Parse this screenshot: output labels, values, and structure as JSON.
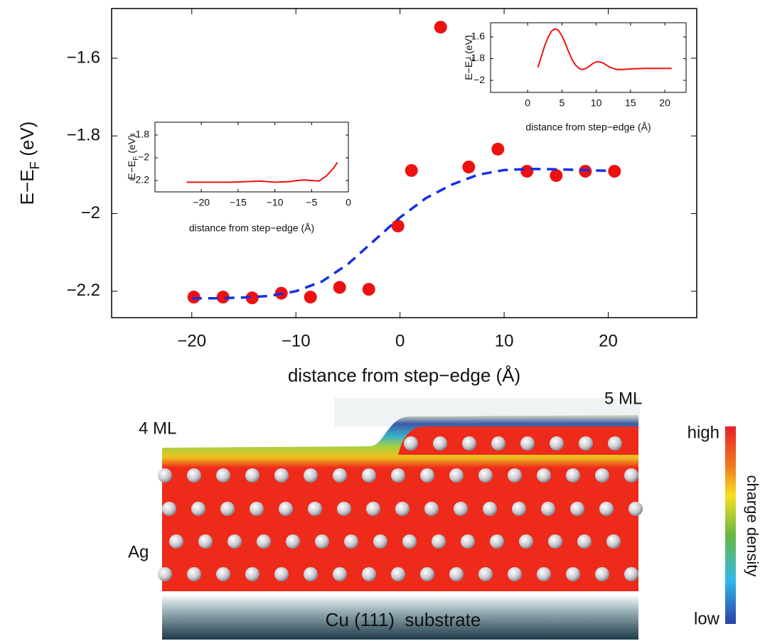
{
  "chart_data": [
    {
      "type": "scatter",
      "xlabel": "distance from step−edge (Å)",
      "ylabel": [
        "E−E",
        "F",
        " (eV)"
      ],
      "xlim": [
        -27.7,
        28.5
      ],
      "ylim": [
        -2.268,
        -1.472
      ],
      "xticks": [
        {
          "value": -20,
          "label": "−20"
        },
        {
          "value": -10,
          "label": "−10"
        },
        0,
        10,
        20
      ],
      "yticks": [
        {
          "value": -2.2,
          "label": "−2.2"
        },
        {
          "value": -2,
          "label": "−2"
        },
        {
          "value": -1.8,
          "label": "−1.8"
        },
        {
          "value": -1.6,
          "label": "−1.6"
        }
      ],
      "series": [
        {
          "type": "scatter",
          "color": "#ee1111",
          "x": [
            -19.8,
            -17.0,
            -14.2,
            -11.4,
            -8.6,
            -5.8,
            -3.0,
            -0.2,
            1.1,
            3.9,
            6.6,
            9.4,
            12.2,
            15.0,
            17.8,
            20.6
          ],
          "values": [
            -2.215,
            -2.215,
            -2.217,
            -2.205,
            -2.215,
            -2.19,
            -2.195,
            -2.032,
            -1.889,
            -1.52,
            -1.88,
            -1.834,
            -1.891,
            -1.902,
            -1.891,
            -1.891
          ]
        },
        {
          "type": "line",
          "color": "#1530e0",
          "dashed": true,
          "x": [
            -20,
            -17.5,
            -15,
            -12.5,
            -10,
            -7.5,
            -5,
            -2.5,
            0,
            2.5,
            5,
            7.5,
            10,
            12.5,
            15,
            17.5,
            20
          ],
          "values": [
            -2.218,
            -2.218,
            -2.216,
            -2.212,
            -2.2,
            -2.175,
            -2.13,
            -2.07,
            -2.01,
            -1.96,
            -1.925,
            -1.9,
            -1.888,
            -1.885,
            -1.886,
            -1.888,
            -1.89
          ]
        }
      ]
    },
    {
      "type": "line",
      "xlabel": "distance from step−edge (Å)",
      "ylabel": [
        "E−E",
        "F",
        " (eV)"
      ],
      "xlim": [
        -5.4,
        23.1
      ],
      "ylim": [
        -2.111,
        -1.469
      ],
      "xticks": [
        0,
        5,
        10,
        15,
        20
      ],
      "yticks": [
        {
          "value": -2,
          "label": "−2"
        },
        {
          "value": -1.8,
          "label": "−1.8"
        },
        {
          "value": -1.6,
          "label": "−1.6"
        }
      ],
      "series": [
        {
          "color": "#ee1111",
          "x": [
            1.5,
            2,
            2.5,
            3,
            3.5,
            4,
            4.5,
            5,
            5.5,
            6,
            6.5,
            7,
            7.5,
            8,
            8.5,
            9,
            9.5,
            10,
            10.5,
            11,
            11.5,
            12,
            13,
            14,
            15,
            17,
            19,
            21
          ],
          "values": [
            -1.88,
            -1.78,
            -1.68,
            -1.6,
            -1.545,
            -1.525,
            -1.54,
            -1.59,
            -1.66,
            -1.74,
            -1.81,
            -1.86,
            -1.89,
            -1.9,
            -1.89,
            -1.87,
            -1.845,
            -1.83,
            -1.83,
            -1.84,
            -1.86,
            -1.88,
            -1.9,
            -1.9,
            -1.895,
            -1.89,
            -1.89,
            -1.89
          ]
        }
      ]
    },
    {
      "type": "line",
      "xlabel": "distance from step−edge (Å)",
      "ylabel": [
        "E−E",
        "F",
        " (eV)"
      ],
      "xlim": [
        -26.3,
        0
      ],
      "ylim": [
        -2.3,
        -1.6875
      ],
      "xticks": [
        {
          "value": -20,
          "label": "−20"
        },
        {
          "value": -15,
          "label": "−15"
        },
        {
          "value": -10,
          "label": "−10"
        },
        {
          "value": -5,
          "label": "−5"
        },
        0
      ],
      "yticks": [
        {
          "value": -2.2,
          "label": "−2.2"
        },
        {
          "value": -2,
          "label": "−2"
        },
        {
          "value": -1.8,
          "label": "−1.8"
        }
      ],
      "series": [
        {
          "color": "#ee1111",
          "x": [
            -22,
            -20,
            -18,
            -16,
            -14,
            -12,
            -10,
            -8,
            -7,
            -6,
            -5,
            -4,
            -3,
            -2,
            -1.5
          ],
          "values": [
            -2.215,
            -2.215,
            -2.215,
            -2.215,
            -2.21,
            -2.205,
            -2.215,
            -2.21,
            -2.2,
            -2.195,
            -2.2,
            -2.205,
            -2.16,
            -2.09,
            -2.04
          ]
        }
      ]
    }
  ],
  "illustration": {
    "left_label": "4 ML",
    "right_label": "5 ML",
    "element_label": "Ag",
    "substrate_label": "Cu (111)  substrate",
    "colorbar": {
      "high": "high",
      "low": "low",
      "title": "charge density"
    }
  }
}
